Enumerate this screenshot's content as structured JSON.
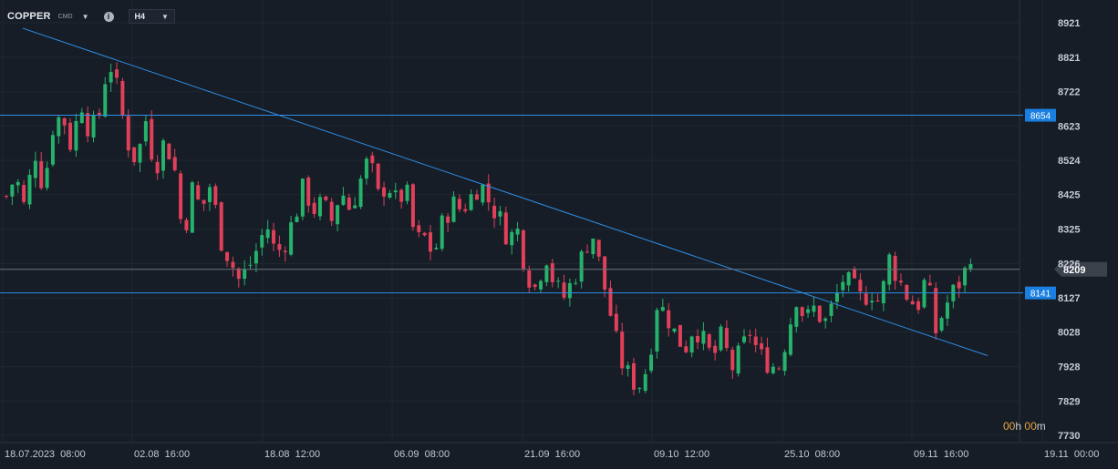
{
  "header": {
    "symbol": "COPPER",
    "symbol_sub": "CMD",
    "timeframe": "H4",
    "info_icon": "info-icon",
    "caret_icon": "chevron-down-icon"
  },
  "countdown": {
    "hours": "00",
    "h": "h",
    "minutes": "00",
    "m": "m"
  },
  "colors": {
    "up": "#26b26b",
    "down": "#e0405a",
    "line": "#2e8ee8",
    "bg": "#161d26"
  },
  "chart_data": {
    "type": "candlestick",
    "y_ticks": [
      8921,
      8821,
      8722,
      8623,
      8524,
      8425,
      8325,
      8226,
      8127,
      8028,
      7928,
      7829,
      7730
    ],
    "x_ticks": [
      "18.07.2023  08:00",
      "02.08  16:00",
      "18.08  12:00",
      "06.09  08:00",
      "21.09  16:00",
      "09.10  12:00",
      "25.10  08:00",
      "09.11  16:00",
      "19.11  00:00"
    ],
    "horizontal_levels": [
      {
        "value": 8654,
        "label": "8654"
      },
      {
        "value": 8141,
        "label": "8141"
      }
    ],
    "current_price": {
      "value": 8209,
      "label": "8209"
    },
    "trendlines": [
      {
        "from": {
          "i": 0,
          "v": 8905
        },
        "to": {
          "i": 165,
          "v": 7960
        }
      }
    ],
    "path": [
      8420,
      8480,
      8380,
      8560,
      8440,
      8620,
      8660,
      8560,
      8700,
      8600,
      8660,
      8820,
      8720,
      8580,
      8520,
      8640,
      8500,
      8580,
      8520,
      8300,
      8440,
      8380,
      8460,
      8300,
      8240,
      8180,
      8210,
      8270,
      8340,
      8250,
      8290,
      8360,
      8450,
      8380,
      8400,
      8350,
      8440,
      8380,
      8460,
      8530,
      8420,
      8460,
      8400,
      8440,
      8290,
      8300,
      8250,
      8350,
      8400,
      8380,
      8420,
      8460,
      8400,
      8360,
      8300,
      8320,
      8200,
      8150,
      8260,
      8160,
      8130,
      8180,
      8250,
      8320,
      8200,
      8080,
      7950,
      7900,
      7870,
      7930,
      8110,
      8080,
      8020,
      7980,
      8050,
      8000,
      7950,
      8020,
      7920,
      7970,
      8030,
      7960,
      7940,
      7920,
      8020,
      8130,
      8060,
      8100,
      8050,
      8110,
      8180,
      8160,
      8120,
      8150,
      8110,
      8240,
      8180,
      8130,
      8100,
      8190,
      8030,
      8100,
      8150,
      8190,
      8280
    ]
  }
}
